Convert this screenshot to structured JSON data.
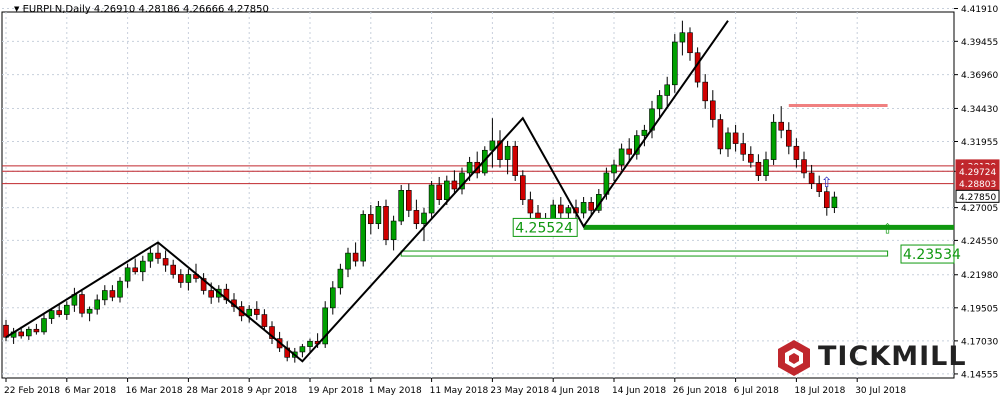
{
  "header": {
    "title": "EURPLN,Daily  4.26910 4.28186 4.26666 4.27850",
    "arrow": "▼"
  },
  "brand": {
    "name": "TICKMILL",
    "color": "#c0272d"
  },
  "chart_data": {
    "type": "candlestick",
    "symbol": "EURPLN",
    "timeframe": "Daily",
    "ohlc_header": {
      "open": 4.2691,
      "high": 4.28186,
      "low": 4.26666,
      "close": 4.2785
    },
    "colors": {
      "bull": "#00a000",
      "bear": "#d00000",
      "wick": "#000000",
      "grid": "#c8d0dc"
    },
    "ylim": [
      4.1425,
      4.4165
    ],
    "y_ticks": [
      "4.41910",
      "4.39455",
      "4.36960",
      "4.34430",
      "4.31955",
      "4.29724",
      "4.27005",
      "4.24550",
      "4.21980",
      "4.19505",
      "4.17030",
      "4.14555"
    ],
    "x_ticks": [
      "22 Feb 2018",
      "6 Mar 2018",
      "16 Mar 2018",
      "28 Mar 2018",
      "9 Apr 2018",
      "19 Apr 2018",
      "1 May 2018",
      "11 May 2018",
      "23 May 2018",
      "4 Jun 2018",
      "14 Jun 2018",
      "26 Jun 2018",
      "6 Jul 2018",
      "18 Jul 2018",
      "30 Jul 2018"
    ],
    "x_tick_index": [
      0,
      8,
      16,
      24,
      32,
      40,
      48,
      56,
      64,
      72,
      80,
      88,
      96,
      104,
      112
    ],
    "candles": [
      [
        4.182,
        4.186,
        4.17,
        4.173
      ],
      [
        4.173,
        4.18,
        4.168,
        4.177
      ],
      [
        4.177,
        4.181,
        4.172,
        4.174
      ],
      [
        4.174,
        4.181,
        4.171,
        4.179
      ],
      [
        4.179,
        4.183,
        4.175,
        4.177
      ],
      [
        4.177,
        4.19,
        4.175,
        4.187
      ],
      [
        4.187,
        4.195,
        4.183,
        4.193
      ],
      [
        4.193,
        4.198,
        4.188,
        4.19
      ],
      [
        4.19,
        4.2,
        4.186,
        4.197
      ],
      [
        4.197,
        4.21,
        4.192,
        4.205
      ],
      [
        4.205,
        4.209,
        4.188,
        4.191
      ],
      [
        4.191,
        4.196,
        4.185,
        4.194
      ],
      [
        4.194,
        4.205,
        4.19,
        4.201
      ],
      [
        4.201,
        4.212,
        4.197,
        4.208
      ],
      [
        4.208,
        4.212,
        4.2,
        4.203
      ],
      [
        4.203,
        4.218,
        4.199,
        4.215
      ],
      [
        4.215,
        4.228,
        4.21,
        4.225
      ],
      [
        4.225,
        4.232,
        4.22,
        4.222
      ],
      [
        4.222,
        4.234,
        4.215,
        4.23
      ],
      [
        4.23,
        4.24,
        4.225,
        4.236
      ],
      [
        4.236,
        4.244,
        4.228,
        4.232
      ],
      [
        4.232,
        4.238,
        4.222,
        4.227
      ],
      [
        4.227,
        4.231,
        4.217,
        4.22
      ],
      [
        4.22,
        4.224,
        4.21,
        4.214
      ],
      [
        4.214,
        4.224,
        4.208,
        4.22
      ],
      [
        4.22,
        4.228,
        4.214,
        4.217
      ],
      [
        4.217,
        4.221,
        4.205,
        4.208
      ],
      [
        4.208,
        4.214,
        4.198,
        4.203
      ],
      [
        4.203,
        4.212,
        4.199,
        4.209
      ],
      [
        4.209,
        4.213,
        4.198,
        4.201
      ],
      [
        4.201,
        4.206,
        4.192,
        4.196
      ],
      [
        4.196,
        4.2,
        4.185,
        4.189
      ],
      [
        4.189,
        4.197,
        4.184,
        4.194
      ],
      [
        4.194,
        4.2,
        4.186,
        4.19
      ],
      [
        4.19,
        4.194,
        4.178,
        4.181
      ],
      [
        4.181,
        4.185,
        4.168,
        4.172
      ],
      [
        4.172,
        4.177,
        4.162,
        4.165
      ],
      [
        4.165,
        4.17,
        4.155,
        4.158
      ],
      [
        4.158,
        4.165,
        4.154,
        4.162
      ],
      [
        4.162,
        4.168,
        4.158,
        4.166
      ],
      [
        4.166,
        4.172,
        4.162,
        4.17
      ],
      [
        4.17,
        4.176,
        4.165,
        4.168
      ],
      [
        4.168,
        4.2,
        4.165,
        4.195
      ],
      [
        4.195,
        4.215,
        4.19,
        4.21
      ],
      [
        4.21,
        4.228,
        4.205,
        4.224
      ],
      [
        4.224,
        4.24,
        4.218,
        4.236
      ],
      [
        4.236,
        4.244,
        4.226,
        4.23
      ],
      [
        4.23,
        4.268,
        4.226,
        4.265
      ],
      [
        4.265,
        4.272,
        4.25,
        4.258
      ],
      [
        4.258,
        4.275,
        4.254,
        4.271
      ],
      [
        4.271,
        4.276,
        4.242,
        4.246
      ],
      [
        4.246,
        4.264,
        4.238,
        4.26
      ],
      [
        4.26,
        4.287,
        4.257,
        4.283
      ],
      [
        4.283,
        4.288,
        4.263,
        4.268
      ],
      [
        4.268,
        4.276,
        4.254,
        4.258
      ],
      [
        4.258,
        4.27,
        4.245,
        4.266
      ],
      [
        4.266,
        4.29,
        4.262,
        4.287
      ],
      [
        4.287,
        4.293,
        4.272,
        4.276
      ],
      [
        4.276,
        4.294,
        4.272,
        4.29
      ],
      [
        4.29,
        4.298,
        4.28,
        4.284
      ],
      [
        4.284,
        4.3,
        4.28,
        4.296
      ],
      [
        4.296,
        4.308,
        4.29,
        4.304
      ],
      [
        4.304,
        4.312,
        4.292,
        4.296
      ],
      [
        4.296,
        4.316,
        4.294,
        4.313
      ],
      [
        4.313,
        4.337,
        4.3,
        4.32
      ],
      [
        4.32,
        4.328,
        4.3,
        4.306
      ],
      [
        4.306,
        4.32,
        4.295,
        4.316
      ],
      [
        4.316,
        4.32,
        4.29,
        4.294
      ],
      [
        4.294,
        4.298,
        4.272,
        4.276
      ],
      [
        4.276,
        4.282,
        4.262,
        4.266
      ],
      [
        4.266,
        4.272,
        4.256,
        4.26
      ],
      [
        4.26,
        4.266,
        4.254,
        4.262
      ],
      [
        4.262,
        4.276,
        4.258,
        4.272
      ],
      [
        4.272,
        4.278,
        4.262,
        4.266
      ],
      [
        4.266,
        4.272,
        4.26,
        4.27
      ],
      [
        4.27,
        4.276,
        4.262,
        4.266
      ],
      [
        4.266,
        4.278,
        4.262,
        4.274
      ],
      [
        4.274,
        4.278,
        4.264,
        4.268
      ],
      [
        4.268,
        4.284,
        4.266,
        4.28
      ],
      [
        4.28,
        4.3,
        4.276,
        4.296
      ],
      [
        4.296,
        4.306,
        4.29,
        4.302
      ],
      [
        4.302,
        4.318,
        4.298,
        4.314
      ],
      [
        4.314,
        4.322,
        4.305,
        4.31
      ],
      [
        4.31,
        4.328,
        4.306,
        4.324
      ],
      [
        4.324,
        4.332,
        4.316,
        4.328
      ],
      [
        4.328,
        4.35,
        4.322,
        4.344
      ],
      [
        4.344,
        4.358,
        4.338,
        4.354
      ],
      [
        4.354,
        4.368,
        4.346,
        4.362
      ],
      [
        4.362,
        4.4,
        4.356,
        4.394
      ],
      [
        4.394,
        4.41,
        4.384,
        4.401
      ],
      [
        4.401,
        4.405,
        4.38,
        4.386
      ],
      [
        4.386,
        4.39,
        4.36,
        4.364
      ],
      [
        4.364,
        4.37,
        4.344,
        4.35
      ],
      [
        4.35,
        4.358,
        4.33,
        4.336
      ],
      [
        4.336,
        4.34,
        4.31,
        4.314
      ],
      [
        4.314,
        4.33,
        4.308,
        4.326
      ],
      [
        4.326,
        4.332,
        4.312,
        4.318
      ],
      [
        4.318,
        4.326,
        4.305,
        4.31
      ],
      [
        4.31,
        4.316,
        4.3,
        4.304
      ],
      [
        4.304,
        4.31,
        4.29,
        4.294
      ],
      [
        4.294,
        4.312,
        4.29,
        4.306
      ],
      [
        4.306,
        4.34,
        4.302,
        4.334
      ],
      [
        4.334,
        4.346,
        4.322,
        4.328
      ],
      [
        4.328,
        4.334,
        4.31,
        4.316
      ],
      [
        4.316,
        4.322,
        4.3,
        4.306
      ],
      [
        4.306,
        4.312,
        4.292,
        4.296
      ],
      [
        4.296,
        4.302,
        4.284,
        4.288
      ],
      [
        4.288,
        4.294,
        4.278,
        4.282
      ],
      [
        4.282,
        4.286,
        4.264,
        4.27
      ],
      [
        4.27,
        4.282,
        4.266,
        4.278
      ]
    ],
    "horizontal_levels": [
      {
        "price": 4.30129,
        "label": "4.30129",
        "color": "#c0272d"
      },
      {
        "price": 4.29724,
        "label": "4.29724",
        "color": "#c0272d"
      },
      {
        "price": 4.28803,
        "label": "4.28803",
        "color": "#c0272d"
      },
      {
        "price": 4.2785,
        "label": "4.27850",
        "color": "#000000"
      }
    ],
    "support_zones": [
      {
        "price": 4.25524,
        "label": "4.25524",
        "color": "#109810"
      },
      {
        "price": 4.2353,
        "label": "4.23534",
        "color": "#109810"
      }
    ],
    "resistance_zone": {
      "price": 4.3465,
      "color": "#f08080"
    },
    "zigzag": [
      [
        0,
        4.173
      ],
      [
        20,
        4.244
      ],
      [
        39,
        4.155
      ],
      [
        68,
        4.337
      ],
      [
        76,
        4.256
      ],
      [
        95,
        4.41
      ]
    ],
    "markers": [
      {
        "index": 108,
        "price": 4.29,
        "symbol": "⇧",
        "color": "#3030c0"
      },
      {
        "index": 116,
        "price": 4.255,
        "symbol": "⇧",
        "color": "#109810"
      }
    ]
  }
}
